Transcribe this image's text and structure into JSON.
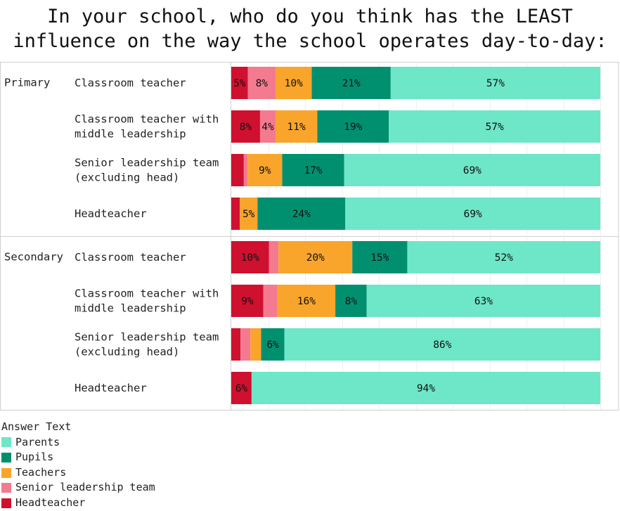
{
  "chart_data": {
    "type": "bar",
    "orientation": "horizontal",
    "stacked": true,
    "title": "In your school, who do you think has the LEAST\ninfluence on the way the school operates day-to-day:",
    "xlim": [
      0,
      100
    ],
    "grid": true,
    "legend": {
      "title": "Answer Text",
      "placement": "bottom-left",
      "items": [
        "Parents",
        "Pupils",
        "Teachers",
        "Senior leadership team",
        "Headteacher"
      ]
    },
    "series_colors": {
      "Headteacher": "#d0102f",
      "Senior leadership team": "#f47a8f",
      "Teachers": "#f9a52c",
      "Pupils": "#009070",
      "Parents": "#6ee6c8"
    },
    "stack_order": [
      "Headteacher",
      "Senior leadership team",
      "Teachers",
      "Pupils",
      "Parents"
    ],
    "groups": [
      {
        "name": "Primary",
        "rows": [
          {
            "label": "Classroom teacher",
            "values": {
              "Headteacher": 4.5,
              "Senior leadership team": 7.5,
              "Teachers": 9.8,
              "Pupils": 21.4,
              "Parents": 56.8
            },
            "labels": {
              "Headteacher": "5%",
              "Senior leadership team": "8%",
              "Teachers": "10%",
              "Pupils": "21%",
              "Parents": "57%"
            }
          },
          {
            "label": "Classroom teacher with\nmiddle leadership",
            "values": {
              "Headteacher": 7.8,
              "Senior leadership team": 4.2,
              "Teachers": 11.3,
              "Pupils": 19.4,
              "Parents": 57.3
            },
            "labels": {
              "Headteacher": "8%",
              "Senior leadership team": "4%",
              "Teachers": "11%",
              "Pupils": "19%",
              "Parents": "57%"
            }
          },
          {
            "label": "Senior leadership team\n(excluding head)",
            "values": {
              "Headteacher": 3.4,
              "Senior leadership team": 1.0,
              "Teachers": 9.4,
              "Pupils": 16.8,
              "Parents": 69.4
            },
            "labels": {
              "Teachers": "9%",
              "Pupils": "17%",
              "Parents": "69%"
            }
          },
          {
            "label": "Headteacher",
            "values": {
              "Headteacher": 2.3,
              "Senior leadership team": 0,
              "Teachers": 4.8,
              "Pupils": 23.8,
              "Parents": 69.1
            },
            "labels": {
              "Teachers": "5%",
              "Pupils": "24%",
              "Parents": "69%"
            }
          }
        ]
      },
      {
        "name": "Secondary",
        "rows": [
          {
            "label": "Classroom teacher",
            "values": {
              "Headteacher": 10.2,
              "Senior leadership team": 2.6,
              "Teachers": 20.0,
              "Pupils": 14.9,
              "Parents": 52.3
            },
            "labels": {
              "Headteacher": "10%",
              "Teachers": "20%",
              "Pupils": "15%",
              "Parents": "52%"
            }
          },
          {
            "label": "Classroom teacher with\nmiddle leadership",
            "values": {
              "Headteacher": 8.7,
              "Senior leadership team": 3.8,
              "Teachers": 15.7,
              "Pupils": 8.5,
              "Parents": 63.3
            },
            "labels": {
              "Headteacher": "9%",
              "Teachers": "16%",
              "Pupils": "8%",
              "Parents": "63%"
            }
          },
          {
            "label": "Senior leadership team\n(excluding head)",
            "values": {
              "Headteacher": 2.5,
              "Senior leadership team": 2.7,
              "Teachers": 2.9,
              "Pupils": 6.3,
              "Parents": 85.6
            },
            "labels": {
              "Pupils": "6%",
              "Parents": "86%"
            }
          },
          {
            "label": "Headteacher",
            "values": {
              "Headteacher": 5.5,
              "Senior leadership team": 0,
              "Teachers": 0,
              "Pupils": 0,
              "Parents": 94.5
            },
            "labels": {
              "Headteacher": "6%",
              "Parents": "94%"
            }
          }
        ]
      }
    ]
  }
}
